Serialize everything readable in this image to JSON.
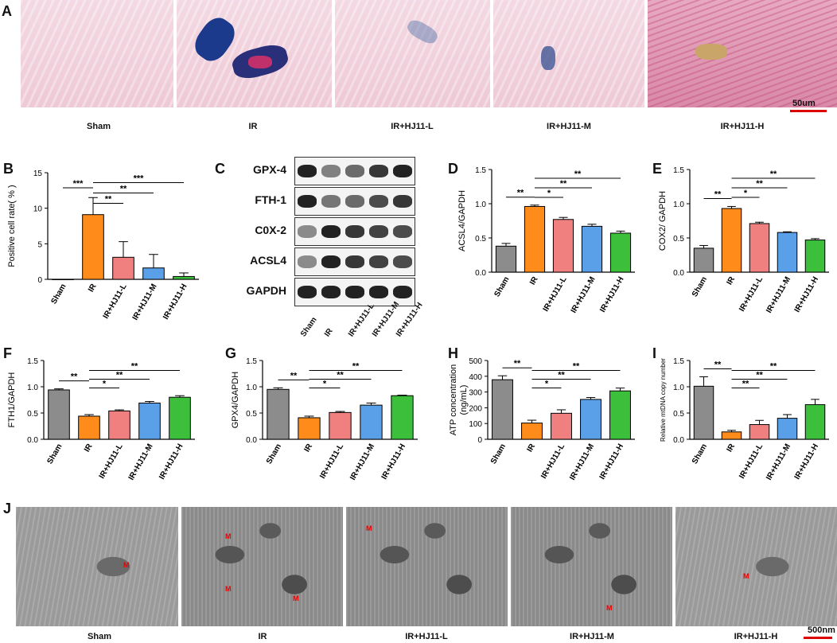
{
  "panels": {
    "A": "A",
    "B": "B",
    "C": "C",
    "D": "D",
    "E": "E",
    "F": "F",
    "G": "G",
    "H": "H",
    "I": "I",
    "J": "J"
  },
  "groups": [
    "Sham",
    "IR",
    "IR+HJ11-L",
    "IR+HJ11-M",
    "IR+HJ11-H"
  ],
  "scale_A": "50um",
  "scale_J": "500nm",
  "mito_label": "M",
  "blot": {
    "proteins": [
      "GPX-4",
      "FTH-1",
      "C0X-2",
      "ACSL4",
      "GAPDH"
    ],
    "lanes": [
      "Sham",
      "IR",
      "IR+HJ11-L",
      "IR+HJ11-M",
      "IR+HJ11-H"
    ]
  },
  "colors": {
    "Sham": "#8c8c8c",
    "IR": "#ff8c1a",
    "IR+HJ11-L": "#f08080",
    "IR+HJ11-M": "#5aa0e8",
    "IR+HJ11-H": "#3cc03c"
  },
  "chart_data": [
    {
      "id": "B",
      "type": "bar",
      "categories": [
        "Sham",
        "IR",
        "IR+HJ11-L",
        "IR+HJ11-M",
        "IR+HJ11-H"
      ],
      "values": [
        0,
        9.1,
        3.1,
        1.6,
        0.4
      ],
      "errors": [
        0,
        2.4,
        2.2,
        1.9,
        0.5
      ],
      "ylabel": "Positive cell rate( % )",
      "ylim": [
        0,
        15
      ],
      "yticks": [
        0,
        5,
        10,
        15
      ],
      "sig": [
        {
          "from": 0,
          "to": 1,
          "label": "***"
        },
        {
          "from": 1,
          "to": 2,
          "label": "**"
        },
        {
          "from": 1,
          "to": 3,
          "label": "**"
        },
        {
          "from": 1,
          "to": 4,
          "label": "***"
        }
      ]
    },
    {
      "id": "D",
      "type": "bar",
      "categories": [
        "Sham",
        "IR",
        "IR+HJ11-L",
        "IR+HJ11-M",
        "IR+HJ11-H"
      ],
      "values": [
        0.38,
        0.96,
        0.77,
        0.67,
        0.57
      ],
      "errors": [
        0.04,
        0.02,
        0.03,
        0.03,
        0.03
      ],
      "ylabel": "ACSL4/GAPDH",
      "ylim": [
        0,
        1.5
      ],
      "yticks": [
        0.0,
        0.5,
        1.0,
        1.5
      ],
      "sig": [
        {
          "from": 0,
          "to": 1,
          "label": "**"
        },
        {
          "from": 1,
          "to": 2,
          "label": "*"
        },
        {
          "from": 1,
          "to": 3,
          "label": "**"
        },
        {
          "from": 1,
          "to": 4,
          "label": "**"
        }
      ]
    },
    {
      "id": "E",
      "type": "bar",
      "categories": [
        "Sham",
        "IR",
        "IR+HJ11-L",
        "IR+HJ11-M",
        "IR+HJ11-H"
      ],
      "values": [
        0.35,
        0.93,
        0.71,
        0.58,
        0.47
      ],
      "errors": [
        0.04,
        0.03,
        0.02,
        0.01,
        0.02
      ],
      "ylabel": "COX2/ GAPDH",
      "ylim": [
        0,
        1.5
      ],
      "yticks": [
        0.0,
        0.5,
        1.0,
        1.5
      ],
      "sig": [
        {
          "from": 0,
          "to": 1,
          "label": "**"
        },
        {
          "from": 1,
          "to": 2,
          "label": "*"
        },
        {
          "from": 1,
          "to": 3,
          "label": "**"
        },
        {
          "from": 1,
          "to": 4,
          "label": "**"
        }
      ]
    },
    {
      "id": "F",
      "type": "bar",
      "categories": [
        "Sham",
        "IR",
        "IR+HJ11-L",
        "IR+HJ11-M",
        "IR+HJ11-H"
      ],
      "values": [
        0.94,
        0.44,
        0.54,
        0.69,
        0.8
      ],
      "errors": [
        0.02,
        0.03,
        0.02,
        0.03,
        0.03
      ],
      "ylabel": "FTH1/GAPDH",
      "ylim": [
        0,
        1.5
      ],
      "yticks": [
        0.0,
        0.5,
        1.0,
        1.5
      ],
      "sig": [
        {
          "from": 0,
          "to": 1,
          "label": "**"
        },
        {
          "from": 1,
          "to": 2,
          "label": "*"
        },
        {
          "from": 1,
          "to": 3,
          "label": "**"
        },
        {
          "from": 1,
          "to": 4,
          "label": "**"
        }
      ]
    },
    {
      "id": "G",
      "type": "bar",
      "categories": [
        "Sham",
        "IR",
        "IR+HJ11-L",
        "IR+HJ11-M",
        "IR+HJ11-H"
      ],
      "values": [
        0.95,
        0.41,
        0.51,
        0.65,
        0.83
      ],
      "errors": [
        0.03,
        0.03,
        0.02,
        0.04,
        0.01
      ],
      "ylabel": "GPX4/GAPDH",
      "ylim": [
        0,
        1.5
      ],
      "yticks": [
        0.0,
        0.5,
        1.0,
        1.5
      ],
      "sig": [
        {
          "from": 0,
          "to": 1,
          "label": "**"
        },
        {
          "from": 1,
          "to": 2,
          "label": "*"
        },
        {
          "from": 1,
          "to": 3,
          "label": "**"
        },
        {
          "from": 1,
          "to": 4,
          "label": "**"
        }
      ]
    },
    {
      "id": "H",
      "type": "bar",
      "categories": [
        "Sham",
        "IR",
        "IR+HJ11-L",
        "IR+HJ11-M",
        "IR+HJ11-H"
      ],
      "values": [
        378,
        103,
        165,
        253,
        307
      ],
      "errors": [
        25,
        18,
        22,
        12,
        18
      ],
      "ylabel": "ATP concentration (ng/mL)",
      "ylim": [
        0,
        500
      ],
      "yticks": [
        0,
        100,
        200,
        300,
        400,
        500
      ],
      "sig": [
        {
          "from": 0,
          "to": 1,
          "label": "**"
        },
        {
          "from": 1,
          "to": 2,
          "label": "*"
        },
        {
          "from": 1,
          "to": 3,
          "label": "**"
        },
        {
          "from": 1,
          "to": 4,
          "label": "**"
        }
      ]
    },
    {
      "id": "I",
      "type": "bar",
      "categories": [
        "Sham",
        "IR",
        "IR+HJ11-L",
        "IR+HJ11-M",
        "IR+HJ11-H"
      ],
      "values": [
        1.01,
        0.14,
        0.28,
        0.4,
        0.66
      ],
      "errors": [
        0.18,
        0.03,
        0.08,
        0.07,
        0.1
      ],
      "ylabel": "Relative mtDNA copy number",
      "ylim": [
        0,
        1.5
      ],
      "yticks": [
        0.0,
        0.5,
        1.0,
        1.5
      ],
      "sig": [
        {
          "from": 0,
          "to": 1,
          "label": "**"
        },
        {
          "from": 1,
          "to": 2,
          "label": "**"
        },
        {
          "from": 1,
          "to": 3,
          "label": "**"
        },
        {
          "from": 1,
          "to": 4,
          "label": "**"
        }
      ]
    }
  ]
}
